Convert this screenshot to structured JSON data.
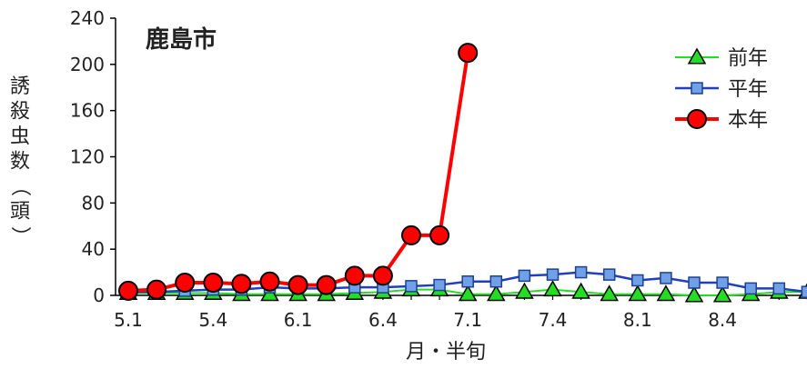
{
  "chart_data": {
    "type": "line",
    "title": "鹿島市",
    "xlabel": "月・半旬",
    "ylabel": "誘殺虫数（頭）",
    "ylim": [
      0,
      240
    ],
    "yticks": [
      "0",
      "40",
      "80",
      "120",
      "160",
      "200",
      "240"
    ],
    "xticks": [
      "5.1",
      "5.4",
      "6.1",
      "6.4",
      "7.1",
      "7.4",
      "8.1",
      "8.4"
    ],
    "x": [
      1,
      2,
      3,
      4,
      5,
      6,
      7,
      8,
      9,
      10,
      11,
      12,
      13,
      14,
      15,
      16,
      17,
      18,
      19,
      20,
      21,
      22,
      23,
      24,
      25,
      26,
      27,
      28
    ],
    "legend_position": "top-right",
    "grid": false,
    "series": [
      {
        "name": "前年",
        "color": "#22dd22",
        "marker": "triangle",
        "values": [
          2,
          2,
          2,
          2,
          1,
          1,
          1,
          1,
          2,
          3,
          5,
          5,
          1,
          1,
          3,
          5,
          3,
          1,
          1,
          1,
          0,
          0,
          1,
          3,
          3,
          1,
          0,
          null
        ]
      },
      {
        "name": "平年",
        "color": "#1f3fbf",
        "marker": "square",
        "values": [
          3,
          3,
          4,
          5,
          5,
          7,
          6,
          6,
          7,
          7,
          8,
          9,
          12,
          12,
          17,
          18,
          20,
          18,
          13,
          15,
          11,
          11,
          6,
          6,
          3,
          2,
          null,
          null
        ]
      },
      {
        "name": "本年",
        "color": "#ff0000",
        "marker": "circle",
        "values": [
          4,
          5,
          11,
          11,
          10,
          12,
          9,
          9,
          17,
          17,
          52,
          52,
          210,
          null,
          null,
          null,
          null,
          null,
          null,
          null,
          null,
          null,
          null,
          null,
          null,
          null,
          null,
          null
        ]
      }
    ]
  }
}
